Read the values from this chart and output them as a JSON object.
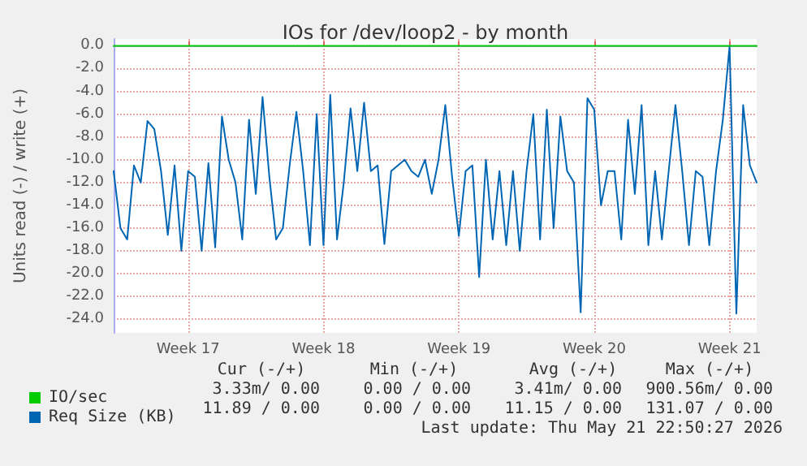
{
  "chart_data": {
    "type": "line",
    "title": "IOs for /dev/loop2 - by month",
    "ylabel": "Units read (-) / write (+)",
    "categories": [
      null,
      null,
      null,
      null,
      null,
      null,
      null,
      null,
      null,
      null,
      null,
      "Week 17",
      null,
      null,
      null,
      null,
      null,
      null,
      null,
      null,
      null,
      null,
      null,
      null,
      null,
      null,
      null,
      null,
      null,
      null,
      null,
      "Week 18",
      null,
      null,
      null,
      null,
      null,
      null,
      null,
      null,
      null,
      null,
      null,
      null,
      null,
      null,
      null,
      null,
      null,
      null,
      null,
      "Week 19",
      null,
      null,
      null,
      null,
      null,
      null,
      null,
      null,
      null,
      null,
      null,
      null,
      null,
      null,
      null,
      null,
      null,
      null,
      null,
      "Week 20",
      null,
      null,
      null,
      null,
      null,
      null,
      null,
      null,
      null,
      null,
      null,
      null,
      null,
      null,
      null,
      null,
      null,
      null,
      null,
      "Week 21",
      null,
      null,
      null,
      null
    ],
    "series": [
      {
        "name": "IO/sec",
        "color": "#00cc00",
        "values": [
          0,
          0,
          0,
          0,
          0,
          0,
          0,
          0,
          0,
          0,
          0,
          0,
          0,
          0,
          0,
          0,
          0,
          0,
          0,
          0,
          0,
          0,
          0,
          0,
          0,
          0,
          0,
          0,
          0,
          0,
          0,
          0,
          0,
          0,
          0,
          0,
          0,
          0,
          0,
          0,
          0,
          0,
          0,
          0,
          0,
          0,
          0,
          0,
          0,
          0,
          0,
          0,
          0,
          0,
          0,
          0,
          0,
          0,
          0,
          0,
          0,
          0,
          0,
          0,
          0,
          0,
          0,
          0,
          0,
          0,
          0,
          0,
          0,
          0,
          0,
          0,
          0,
          0,
          0,
          0,
          0,
          0,
          0,
          0,
          0,
          0,
          0,
          0,
          0,
          0,
          0,
          0,
          0,
          0,
          0,
          0
        ]
      },
      {
        "name": "Req Size (KB)",
        "color": "#0066b3",
        "values": [
          -11,
          -16,
          -17,
          -10.5,
          -12,
          -6.6,
          -7.3,
          -11,
          -16.6,
          -10.5,
          -18,
          -11,
          -11.5,
          -18,
          -10.3,
          -17.7,
          -6.2,
          -10,
          -12,
          -17,
          -6.5,
          -13,
          -4.5,
          -11.5,
          -17,
          -16,
          -10.5,
          -5.8,
          -11,
          -17.5,
          -6,
          -17.5,
          -4.3,
          -17,
          -12,
          -5.5,
          -11,
          -5,
          -11,
          -10.5,
          -17.4,
          -11,
          -10.5,
          -10,
          -11,
          -11.5,
          -10,
          -13,
          -10,
          -5.2,
          -11.5,
          -16.7,
          -11,
          -10.5,
          -20.3,
          -10,
          -17,
          -11,
          -17.5,
          -11,
          -18,
          -11,
          -6,
          -17,
          -5.6,
          -16,
          -6.2,
          -11,
          -12,
          -23.4,
          -4.6,
          -5.6,
          -14,
          -11,
          -11,
          -17,
          -6.5,
          -13,
          -5.2,
          -17.5,
          -11,
          -17,
          -11,
          -5.2,
          -11,
          -17.5,
          -11,
          -11.5,
          -17.5,
          -11,
          -6.5,
          0,
          -23.5,
          -5.2,
          -10.5,
          -12
        ]
      }
    ],
    "ylim": [
      -25.2,
      0.6
    ],
    "yticks": [
      {
        "value": -24,
        "label": "-24.0"
      },
      {
        "value": -22,
        "label": "-22.0"
      },
      {
        "value": -20,
        "label": "-20.0"
      },
      {
        "value": -18,
        "label": "-18.0"
      },
      {
        "value": -16,
        "label": "-16.0"
      },
      {
        "value": -14,
        "label": "-14.0"
      },
      {
        "value": -12,
        "label": "-12.0"
      },
      {
        "value": -10,
        "label": "-10.0"
      },
      {
        "value": -8,
        "label": "-8.0"
      },
      {
        "value": -6,
        "label": "-6.0"
      },
      {
        "value": -4,
        "label": "-4.0"
      },
      {
        "value": -2,
        "label": "-2.0"
      },
      {
        "value": 0,
        "label": "0.0"
      }
    ],
    "grid": true,
    "legend": "bottom left",
    "marker": "none",
    "line_style": "solid",
    "annotations": [
      "Cur (-/+)",
      "Min (-/+)",
      "Avg (-/+)",
      "Max (-/+)",
      "3.33m/ 0.00",
      "0.00 / 0.00",
      "3.41m/ 0.00",
      "900.56m/ 0.00",
      "11.89 / 0.00",
      "0.00 / 0.00",
      "11.15 / 0.00",
      "131.07 / 0.00",
      "Last update: Thu May 21 22:50:27 2026"
    ]
  }
}
